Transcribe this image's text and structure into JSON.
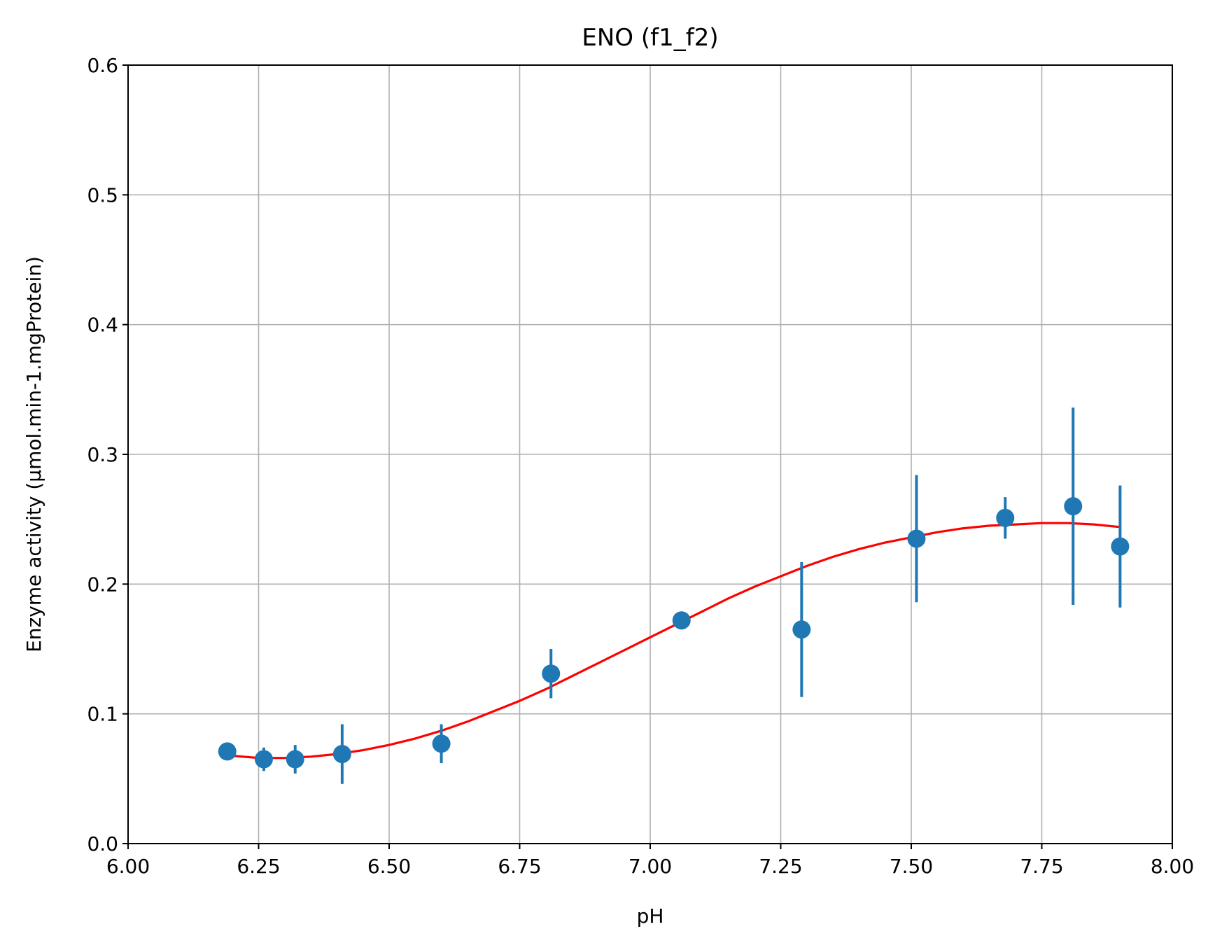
{
  "chart_data": {
    "type": "scatter",
    "title": "ENO (f1_f2)",
    "xlabel": "pH",
    "ylabel": "Enzyme activity (µmol.min-1.mgProtein)",
    "xlim": [
      6.0,
      8.0
    ],
    "ylim": [
      0.0,
      0.6
    ],
    "xticks": [
      6.0,
      6.25,
      6.5,
      6.75,
      7.0,
      7.25,
      7.5,
      7.75,
      8.0
    ],
    "xtick_labels": [
      "6.00",
      "6.25",
      "6.50",
      "6.75",
      "7.00",
      "7.25",
      "7.50",
      "7.75",
      "8.00"
    ],
    "yticks": [
      0.0,
      0.1,
      0.2,
      0.3,
      0.4,
      0.5,
      0.6
    ],
    "ytick_labels": [
      "0.0",
      "0.1",
      "0.2",
      "0.3",
      "0.4",
      "0.5",
      "0.6"
    ],
    "grid": true,
    "points": [
      {
        "x": 6.19,
        "y": 0.071,
        "err": 0.0
      },
      {
        "x": 6.26,
        "y": 0.065,
        "err": 0.009
      },
      {
        "x": 6.32,
        "y": 0.065,
        "err": 0.011
      },
      {
        "x": 6.41,
        "y": 0.069,
        "err": 0.023
      },
      {
        "x": 6.6,
        "y": 0.077,
        "err": 0.015
      },
      {
        "x": 6.81,
        "y": 0.131,
        "err": 0.019
      },
      {
        "x": 7.06,
        "y": 0.172,
        "err": 0.0
      },
      {
        "x": 7.29,
        "y": 0.165,
        "err": 0.052
      },
      {
        "x": 7.51,
        "y": 0.235,
        "err": 0.049
      },
      {
        "x": 7.68,
        "y": 0.251,
        "err": 0.016
      },
      {
        "x": 7.81,
        "y": 0.26,
        "err": 0.076
      },
      {
        "x": 7.9,
        "y": 0.229,
        "err": 0.047
      }
    ],
    "fit_curve": {
      "x": [
        6.19,
        6.25,
        6.3,
        6.35,
        6.4,
        6.45,
        6.5,
        6.55,
        6.6,
        6.65,
        6.7,
        6.75,
        6.8,
        6.85,
        6.9,
        6.95,
        7.0,
        7.05,
        7.1,
        7.15,
        7.2,
        7.25,
        7.3,
        7.35,
        7.4,
        7.45,
        7.5,
        7.55,
        7.6,
        7.65,
        7.7,
        7.75,
        7.8,
        7.85,
        7.9
      ],
      "y": [
        0.068,
        0.066,
        0.066,
        0.067,
        0.069,
        0.072,
        0.076,
        0.081,
        0.087,
        0.094,
        0.102,
        0.11,
        0.119,
        0.129,
        0.139,
        0.149,
        0.159,
        0.169,
        0.179,
        0.189,
        0.198,
        0.206,
        0.214,
        0.221,
        0.227,
        0.232,
        0.236,
        0.24,
        0.243,
        0.245,
        0.246,
        0.247,
        0.247,
        0.246,
        0.244
      ]
    },
    "colors": {
      "points": "#1f77b4",
      "fit": "#ff0000"
    }
  }
}
